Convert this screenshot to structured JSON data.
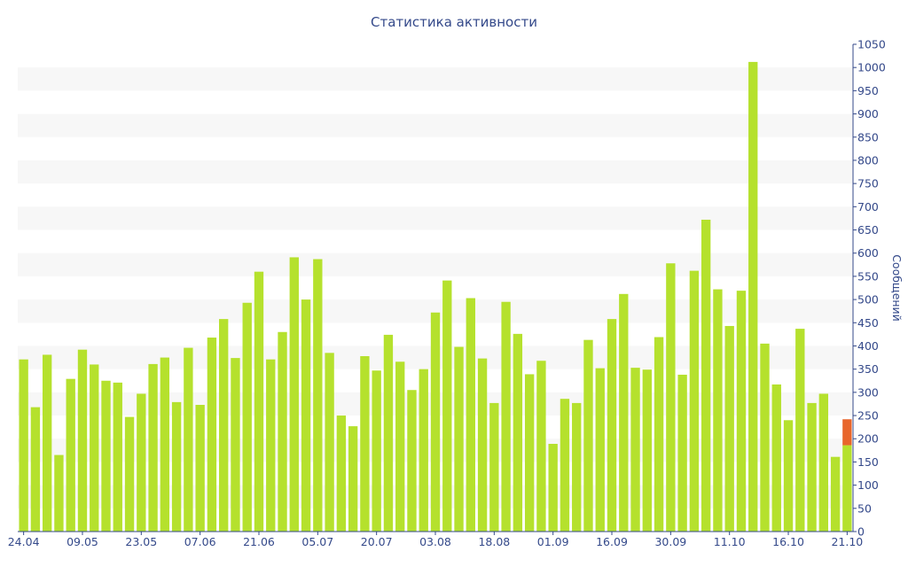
{
  "chart_data": {
    "type": "bar",
    "title": "Статистика активности",
    "ylabel": "Сообщений",
    "xlabel": "",
    "ylim": [
      0,
      1050
    ],
    "yticks": [
      0,
      50,
      100,
      150,
      200,
      250,
      300,
      350,
      400,
      450,
      500,
      550,
      600,
      650,
      700,
      750,
      800,
      850,
      900,
      950,
      1000,
      1050
    ],
    "x_tick_labels": [
      {
        "index": 0,
        "label": "24.04"
      },
      {
        "index": 5,
        "label": "09.05"
      },
      {
        "index": 10,
        "label": "23.05"
      },
      {
        "index": 15,
        "label": "07.06"
      },
      {
        "index": 20,
        "label": "21.06"
      },
      {
        "index": 25,
        "label": "05.07"
      },
      {
        "index": 30,
        "label": "20.07"
      },
      {
        "index": 35,
        "label": "03.08"
      },
      {
        "index": 40,
        "label": "18.08"
      },
      {
        "index": 45,
        "label": "01.09"
      },
      {
        "index": 50,
        "label": "16.09"
      },
      {
        "index": 55,
        "label": "30.09"
      },
      {
        "index": 60,
        "label": "11.10"
      },
      {
        "index": 65,
        "label": "16.10"
      },
      {
        "index": 70,
        "label": "21.10"
      }
    ],
    "series": [
      {
        "color": "#b5e12d",
        "values": [
          371,
          268,
          381,
          165,
          329,
          392,
          360,
          325,
          321,
          247,
          297,
          361,
          375,
          279,
          396,
          273,
          418,
          458,
          374,
          493,
          560,
          371,
          430,
          591,
          500,
          587,
          385,
          250,
          227,
          378,
          347,
          424,
          366,
          305,
          350,
          472,
          541,
          398,
          503,
          373,
          277,
          495,
          426,
          339,
          368,
          189,
          286,
          277,
          413,
          352,
          458,
          512,
          353,
          349,
          419,
          578,
          338,
          562,
          672,
          522,
          443,
          519,
          1012,
          405,
          317,
          240,
          437,
          277,
          297,
          161,
          186
        ]
      },
      {
        "color": "#e8662b",
        "values": [
          0,
          0,
          0,
          0,
          0,
          0,
          0,
          0,
          0,
          0,
          0,
          0,
          0,
          0,
          0,
          0,
          0,
          0,
          0,
          0,
          0,
          0,
          0,
          0,
          0,
          0,
          0,
          0,
          0,
          0,
          0,
          0,
          0,
          0,
          0,
          0,
          0,
          0,
          0,
          0,
          0,
          0,
          0,
          0,
          0,
          0,
          0,
          0,
          0,
          0,
          0,
          0,
          0,
          0,
          0,
          0,
          0,
          0,
          0,
          0,
          0,
          0,
          0,
          0,
          0,
          0,
          0,
          0,
          0,
          0,
          56
        ]
      }
    ],
    "grid": "alternating horizontal bands",
    "band_color": "#f7f7f7",
    "axis_color": "#34498a"
  }
}
